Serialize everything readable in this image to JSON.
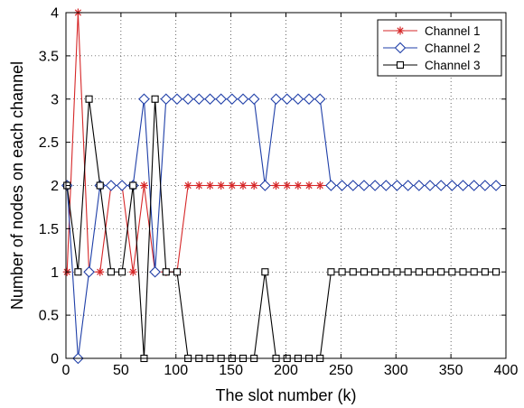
{
  "chart_data": {
    "type": "line",
    "title": "",
    "xlabel": "The slot number (k)",
    "ylabel": "Number of nodes on each channel",
    "xlim": [
      0,
      400
    ],
    "ylim": [
      0,
      4
    ],
    "x_ticks": [
      "0",
      "50",
      "100",
      "150",
      "200",
      "250",
      "300",
      "350",
      "400"
    ],
    "y_ticks": [
      "0",
      "0.5",
      "1",
      "1.5",
      "2",
      "2.5",
      "3",
      "3.5",
      "4"
    ],
    "grid": true,
    "legend_position": "top-right",
    "x": [
      1,
      11,
      21,
      31,
      41,
      51,
      61,
      71,
      81,
      91,
      101,
      111,
      121,
      131,
      141,
      151,
      161,
      171,
      181,
      191,
      201,
      211,
      221,
      231,
      241,
      251,
      261,
      271,
      281,
      291,
      301,
      311,
      321,
      331,
      341,
      351,
      361,
      371,
      381,
      391
    ],
    "series": [
      {
        "name": "Channel 1",
        "color": "#d62728",
        "marker": "asterisk",
        "values": [
          1,
          4,
          1,
          1,
          2,
          2,
          1,
          2,
          1,
          1,
          1,
          2,
          2,
          2,
          2,
          2,
          2,
          2,
          2,
          2,
          2,
          2,
          2,
          2,
          2,
          2,
          2,
          2,
          2,
          2,
          2,
          2,
          2,
          2,
          2,
          2,
          2,
          2,
          2,
          2
        ]
      },
      {
        "name": "Channel 2",
        "color": "#1f3fa8",
        "marker": "diamond",
        "values": [
          2,
          0,
          1,
          2,
          2,
          2,
          2,
          3,
          1,
          3,
          3,
          3,
          3,
          3,
          3,
          3,
          3,
          3,
          2,
          3,
          3,
          3,
          3,
          3,
          2,
          2,
          2,
          2,
          2,
          2,
          2,
          2,
          2,
          2,
          2,
          2,
          2,
          2,
          2,
          2
        ]
      },
      {
        "name": "Channel 3",
        "color": "#000000",
        "marker": "square",
        "values": [
          2,
          1,
          3,
          2,
          1,
          1,
          2,
          0,
          3,
          1,
          1,
          0,
          0,
          0,
          0,
          0,
          0,
          0,
          1,
          0,
          0,
          0,
          0,
          0,
          1,
          1,
          1,
          1,
          1,
          1,
          1,
          1,
          1,
          1,
          1,
          1,
          1,
          1,
          1,
          1
        ]
      }
    ]
  }
}
